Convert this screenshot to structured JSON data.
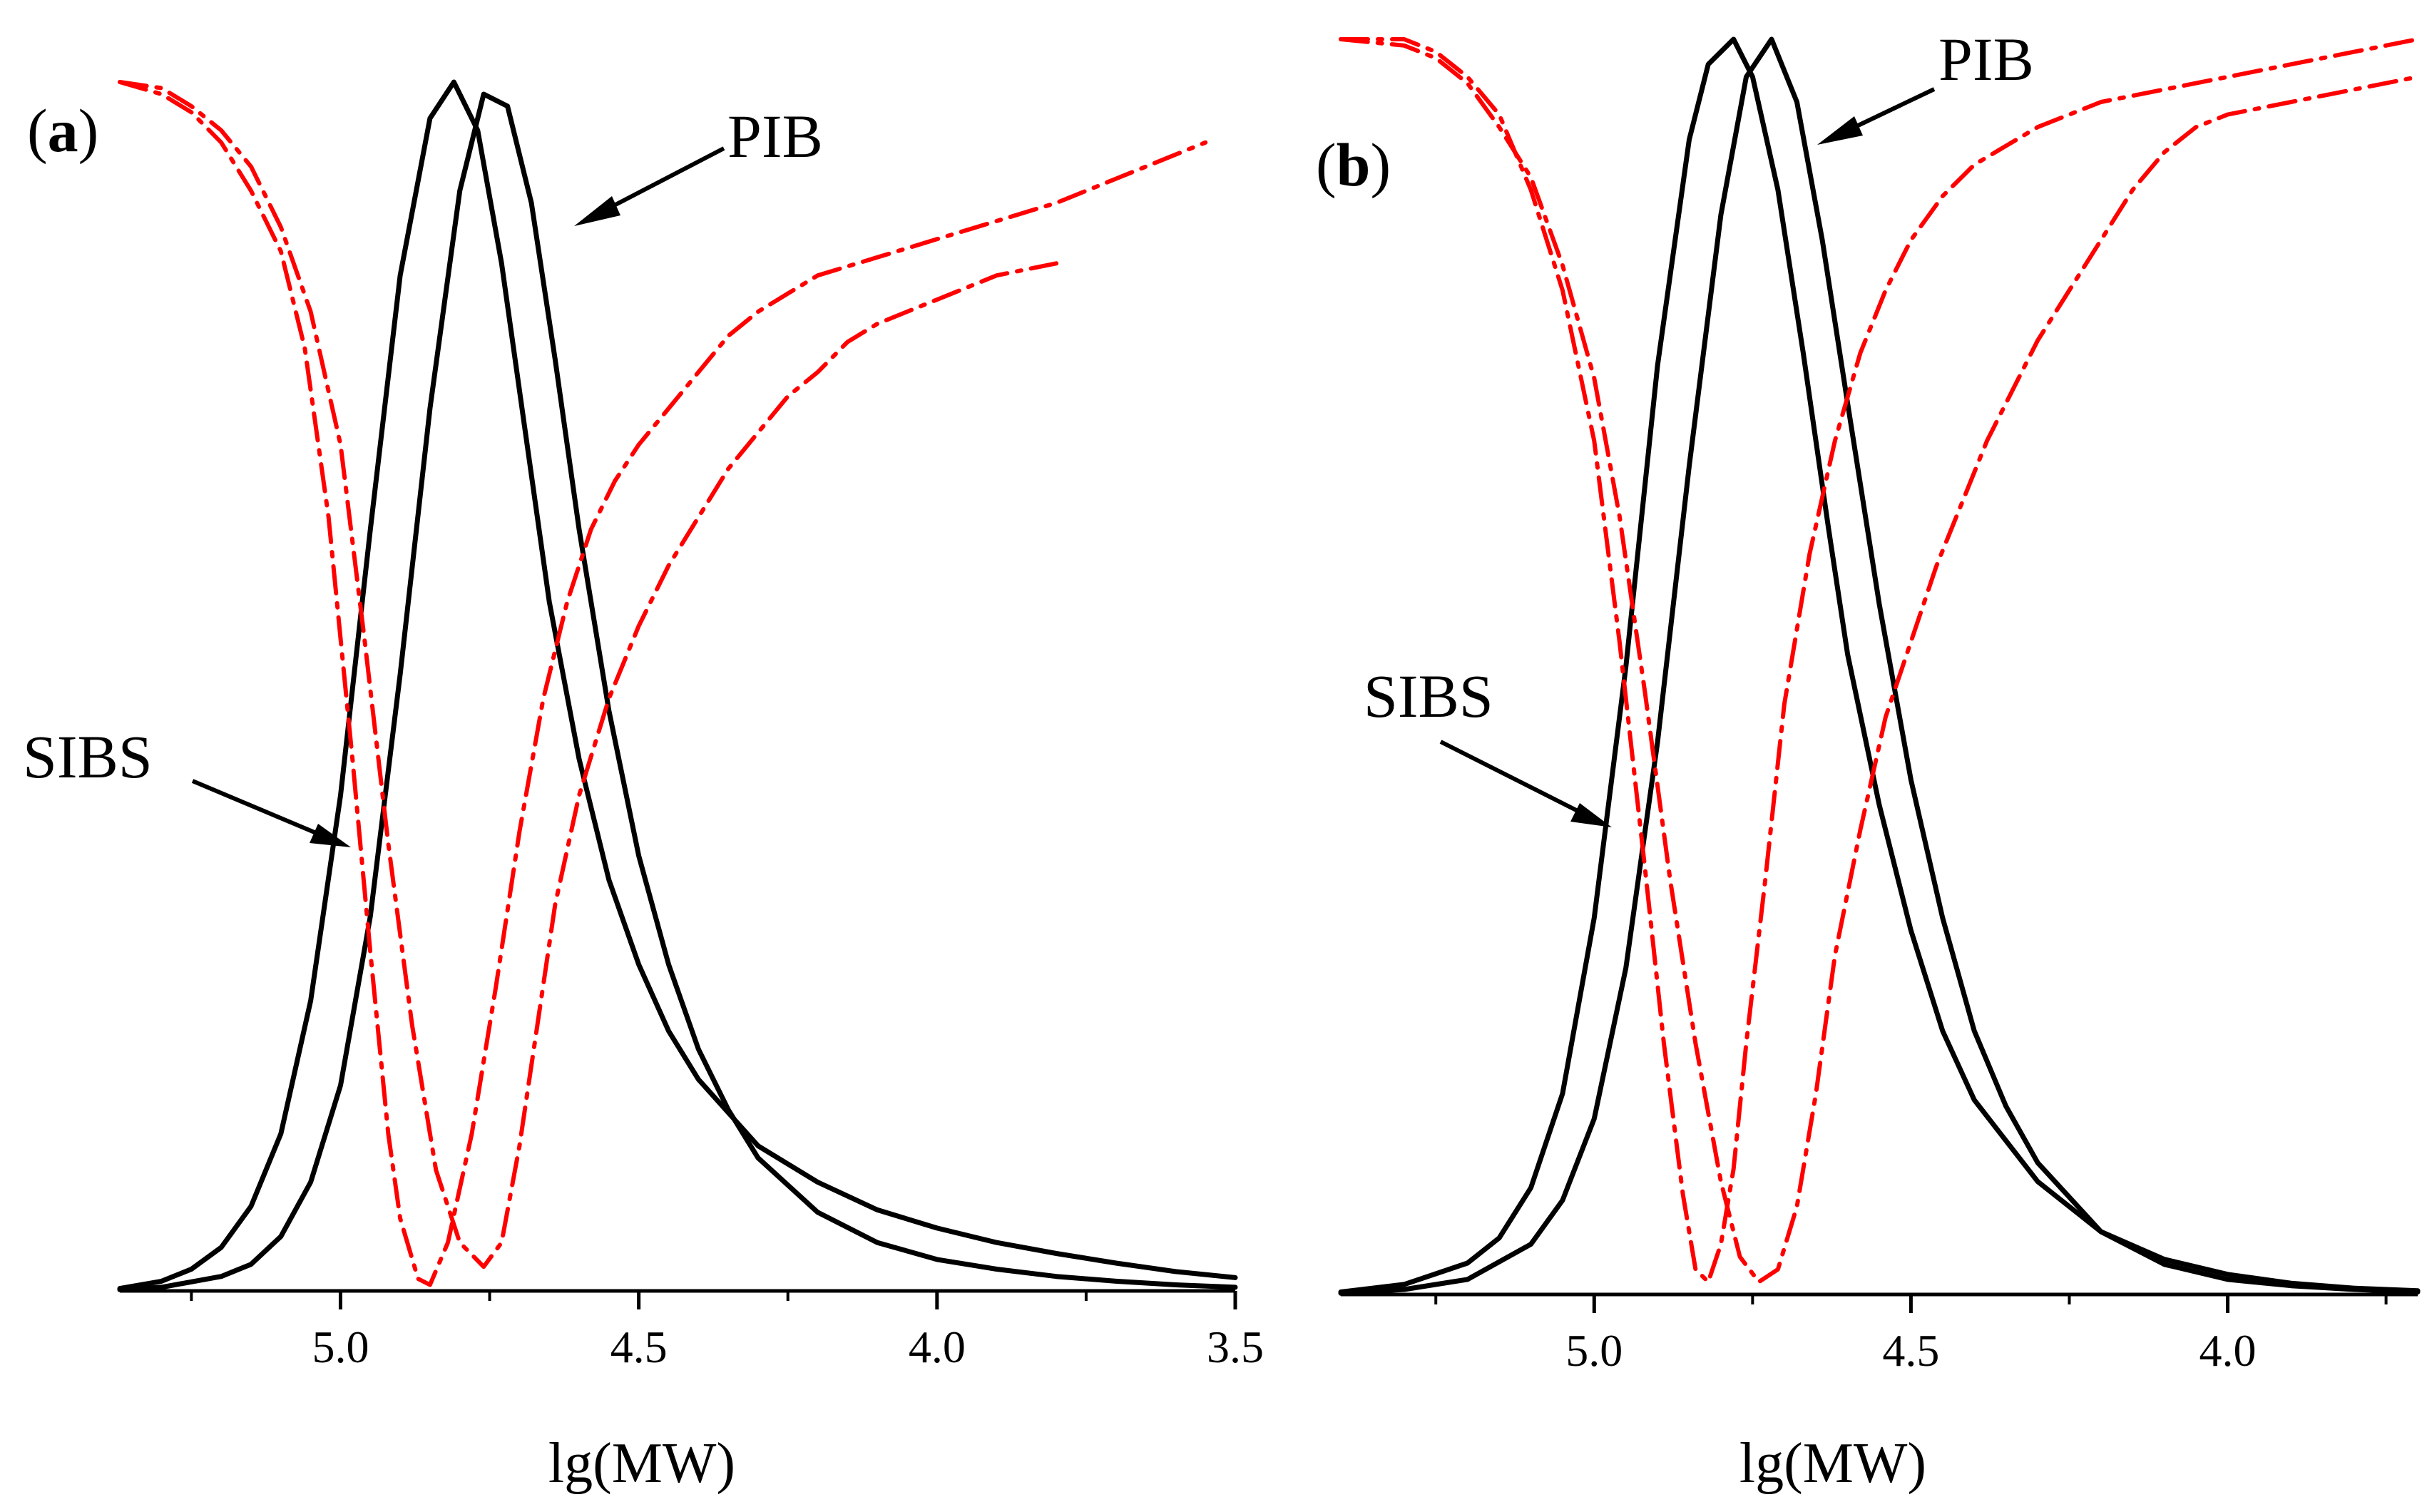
{
  "colors": {
    "gpc_trace": "#000000",
    "derived_trace": "#ff0000",
    "axis": "#000000",
    "background": "#ffffff"
  },
  "chart_data": [
    {
      "type": "line",
      "panel_label": "a",
      "xlabel": "lg(MW)",
      "xlim": [
        5.37,
        3.5
      ],
      "x_reversed": true,
      "xticks": [
        "5.0",
        "4.5",
        "4.0",
        "3.5"
      ],
      "xtick_values": [
        5.0,
        4.5,
        4.0,
        3.5
      ],
      "minor_xtick_values": [
        5.25,
        4.75,
        4.25,
        3.75
      ],
      "ylabel": "",
      "ylim": [
        0,
        1
      ],
      "y_axis_visible": false,
      "grid": false,
      "annotations": [
        {
          "text": "PIB",
          "points_to_x": 4.67,
          "points_to_y": 0.9
        },
        {
          "text": "SIBS",
          "points_to_x": 5.01,
          "points_to_y": 0.37
        }
      ],
      "series": [
        {
          "style": "solid",
          "color": "#000000",
          "x": [
            5.37,
            5.3,
            5.25,
            5.2,
            5.15,
            5.1,
            5.05,
            5.0,
            4.95,
            4.9,
            4.85,
            4.81,
            4.77,
            4.73,
            4.69,
            4.65,
            4.6,
            4.55,
            4.5,
            4.45,
            4.4,
            4.3,
            4.2,
            4.1,
            4.0,
            3.9,
            3.8,
            3.7,
            3.6,
            3.5
          ],
          "y": [
            0.002,
            0.008,
            0.018,
            0.036,
            0.07,
            0.13,
            0.24,
            0.41,
            0.63,
            0.84,
            0.97,
            1.0,
            0.96,
            0.85,
            0.71,
            0.57,
            0.44,
            0.34,
            0.27,
            0.215,
            0.175,
            0.12,
            0.09,
            0.067,
            0.052,
            0.04,
            0.031,
            0.023,
            0.016,
            0.011
          ]
        },
        {
          "style": "solid",
          "color": "#000000",
          "x": [
            5.37,
            5.3,
            5.2,
            5.15,
            5.1,
            5.05,
            5.0,
            4.95,
            4.9,
            4.85,
            4.8,
            4.76,
            4.72,
            4.68,
            4.64,
            4.6,
            4.55,
            4.5,
            4.45,
            4.4,
            4.35,
            4.3,
            4.2,
            4.1,
            4.0,
            3.9,
            3.8,
            3.7,
            3.6,
            3.5
          ],
          "y": [
            0.001,
            0.003,
            0.012,
            0.022,
            0.045,
            0.09,
            0.17,
            0.31,
            0.51,
            0.73,
            0.91,
            0.99,
            0.98,
            0.9,
            0.77,
            0.63,
            0.48,
            0.36,
            0.27,
            0.2,
            0.15,
            0.11,
            0.065,
            0.04,
            0.026,
            0.018,
            0.012,
            0.008,
            0.005,
            0.003
          ]
        },
        {
          "style": "dash-dot",
          "color": "#ff0000",
          "x": [
            5.37,
            5.3,
            5.25,
            5.2,
            5.15,
            5.1,
            5.06,
            5.02,
            4.98,
            4.95,
            4.92,
            4.9,
            4.87,
            4.85,
            4.82,
            4.78,
            4.74,
            4.7,
            4.66,
            4.62,
            4.58,
            4.54,
            4.5,
            4.45,
            4.4,
            4.35,
            4.3,
            4.25,
            4.2,
            4.1,
            4.0,
            3.9,
            3.8,
            3.7,
            3.6,
            3.55
          ],
          "y": [
            1.0,
            0.99,
            0.975,
            0.95,
            0.91,
            0.86,
            0.78,
            0.64,
            0.44,
            0.28,
            0.13,
            0.06,
            0.01,
            0.005,
            0.04,
            0.13,
            0.25,
            0.38,
            0.49,
            0.57,
            0.63,
            0.67,
            0.7,
            0.73,
            0.76,
            0.79,
            0.81,
            0.825,
            0.84,
            0.855,
            0.87,
            0.885,
            0.9,
            0.92,
            0.94,
            0.95
          ]
        },
        {
          "style": "dash-dot",
          "color": "#ff0000",
          "x": [
            5.37,
            5.3,
            5.25,
            5.2,
            5.15,
            5.1,
            5.05,
            5.0,
            4.96,
            4.92,
            4.88,
            4.84,
            4.8,
            4.76,
            4.73,
            4.7,
            4.67,
            4.64,
            4.6,
            4.55,
            4.5,
            4.45,
            4.4,
            4.35,
            4.3,
            4.25,
            4.2,
            4.15,
            4.1,
            4.05,
            4.0,
            3.95,
            3.9,
            3.85,
            3.8
          ],
          "y": [
            1.0,
            0.995,
            0.98,
            0.96,
            0.93,
            0.88,
            0.81,
            0.7,
            0.54,
            0.37,
            0.22,
            0.1,
            0.04,
            0.02,
            0.04,
            0.12,
            0.22,
            0.32,
            0.41,
            0.49,
            0.55,
            0.6,
            0.64,
            0.68,
            0.71,
            0.74,
            0.76,
            0.785,
            0.8,
            0.81,
            0.82,
            0.83,
            0.84,
            0.845,
            0.85
          ]
        }
      ]
    },
    {
      "type": "line",
      "panel_label": "b",
      "xlabel": "lg(MW)",
      "xlim": [
        5.4,
        3.7
      ],
      "x_reversed": true,
      "xticks": [
        "5.0",
        "4.5",
        "4.0"
      ],
      "xtick_values": [
        5.0,
        4.5,
        4.0
      ],
      "minor_xtick_values": [
        5.25,
        4.75,
        4.25,
        3.75
      ],
      "ylabel": "",
      "ylim": [
        0,
        1
      ],
      "y_axis_visible": false,
      "grid": false,
      "annotations": [
        {
          "text": "PIB",
          "points_to_x": 4.7,
          "points_to_y": 0.95
        },
        {
          "text": "SIBS",
          "points_to_x": 4.96,
          "points_to_y": 0.38
        }
      ],
      "series": [
        {
          "style": "solid",
          "color": "#000000",
          "x": [
            5.4,
            5.3,
            5.2,
            5.15,
            5.1,
            5.05,
            5.0,
            4.95,
            4.9,
            4.85,
            4.82,
            4.78,
            4.75,
            4.71,
            4.67,
            4.63,
            4.6,
            4.55,
            4.5,
            4.45,
            4.4,
            4.3,
            4.2,
            4.1,
            4.0,
            3.9,
            3.8,
            3.7
          ],
          "y": [
            0.002,
            0.008,
            0.025,
            0.045,
            0.085,
            0.16,
            0.3,
            0.5,
            0.74,
            0.92,
            0.98,
            1.0,
            0.97,
            0.88,
            0.75,
            0.61,
            0.51,
            0.39,
            0.29,
            0.21,
            0.155,
            0.09,
            0.05,
            0.028,
            0.016,
            0.009,
            0.005,
            0.003
          ]
        },
        {
          "style": "solid",
          "color": "#000000",
          "x": [
            5.4,
            5.3,
            5.2,
            5.1,
            5.05,
            5.0,
            4.95,
            4.9,
            4.85,
            4.8,
            4.76,
            4.72,
            4.68,
            4.64,
            4.6,
            4.55,
            4.5,
            4.45,
            4.4,
            4.35,
            4.3,
            4.2,
            4.1,
            4.0,
            3.9,
            3.8,
            3.7
          ],
          "y": [
            0.001,
            0.004,
            0.012,
            0.04,
            0.075,
            0.14,
            0.26,
            0.44,
            0.66,
            0.86,
            0.97,
            1.0,
            0.95,
            0.84,
            0.71,
            0.55,
            0.41,
            0.3,
            0.21,
            0.15,
            0.105,
            0.05,
            0.024,
            0.012,
            0.007,
            0.004,
            0.002
          ]
        },
        {
          "style": "dash-dot",
          "color": "#ff0000",
          "x": [
            5.4,
            5.3,
            5.25,
            5.2,
            5.15,
            5.1,
            5.05,
            5.0,
            4.96,
            4.92,
            4.89,
            4.86,
            4.84,
            4.82,
            4.8,
            4.78,
            4.76,
            4.73,
            4.7,
            4.66,
            4.62,
            4.58,
            4.54,
            4.5,
            4.45,
            4.4,
            4.35,
            4.3,
            4.25,
            4.2,
            4.1,
            4.0,
            3.9,
            3.8,
            3.7
          ],
          "y": [
            1.0,
            1.0,
            0.99,
            0.97,
            0.94,
            0.88,
            0.8,
            0.68,
            0.52,
            0.34,
            0.2,
            0.08,
            0.02,
            0.01,
            0.04,
            0.1,
            0.2,
            0.33,
            0.47,
            0.59,
            0.68,
            0.75,
            0.8,
            0.84,
            0.875,
            0.9,
            0.915,
            0.93,
            0.94,
            0.95,
            0.96,
            0.97,
            0.98,
            0.99,
            1.0
          ]
        },
        {
          "style": "dash-dot",
          "color": "#ff0000",
          "x": [
            5.4,
            5.3,
            5.25,
            5.2,
            5.15,
            5.1,
            5.05,
            5.0,
            4.96,
            4.92,
            4.88,
            4.84,
            4.8,
            4.77,
            4.74,
            4.71,
            4.68,
            4.65,
            4.62,
            4.58,
            4.54,
            4.5,
            4.46,
            4.42,
            4.38,
            4.34,
            4.3,
            4.25,
            4.2,
            4.15,
            4.1,
            4.05,
            4.0,
            3.9,
            3.8,
            3.7
          ],
          "y": [
            1.0,
            0.995,
            0.985,
            0.965,
            0.93,
            0.89,
            0.82,
            0.73,
            0.62,
            0.48,
            0.33,
            0.2,
            0.09,
            0.03,
            0.01,
            0.02,
            0.07,
            0.16,
            0.27,
            0.37,
            0.46,
            0.52,
            0.58,
            0.63,
            0.68,
            0.72,
            0.76,
            0.8,
            0.84,
            0.88,
            0.91,
            0.93,
            0.94,
            0.95,
            0.96,
            0.97
          ]
        }
      ]
    }
  ]
}
